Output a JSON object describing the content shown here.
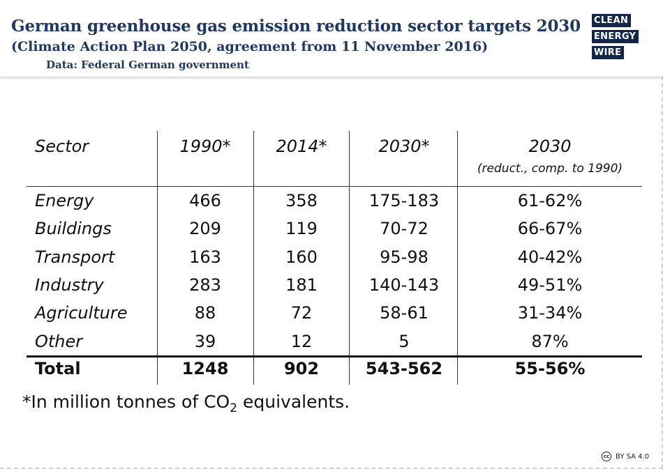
{
  "header": {
    "title": "German greenhouse gas emission reduction sector targets 2030",
    "subtitle": "(Climate Action Plan 2050, agreement from 11 November 2016)",
    "source": "Data: Federal German government"
  },
  "logo": {
    "line1": "CLEAN",
    "line2": "ENERGY",
    "line3": "WIRE",
    "colors": {
      "background": "#12264a",
      "text": "#ffffff",
      "highlight": "#2ab0d4"
    }
  },
  "license": {
    "icon": "cc",
    "text": "BY SA 4.0"
  },
  "chart_data": {
    "type": "table",
    "columns": [
      "Sector",
      "1990*",
      "2014*",
      "2030*",
      "2030"
    ],
    "column_notes": [
      "",
      "",
      "",
      "",
      "(reduct., comp. to 1990)"
    ],
    "rows": [
      [
        "Energy",
        "466",
        "358",
        "175-183",
        "61-62%"
      ],
      [
        "Buildings",
        "209",
        "119",
        "70-72",
        "66-67%"
      ],
      [
        "Transport",
        "163",
        "160",
        "95-98",
        "40-42%"
      ],
      [
        "Industry",
        "283",
        "181",
        "140-143",
        "49-51%"
      ],
      [
        "Agriculture",
        "88",
        "72",
        "58-61",
        "31-34%"
      ],
      [
        "Other",
        "39",
        "12",
        "5",
        "87%"
      ]
    ],
    "total": [
      "Total",
      "1248",
      "902",
      "543-562",
      "55-56%"
    ],
    "footnote_main": "*In million tonnes of CO",
    "footnote_sub": "2",
    "footnote_end": " equivalents."
  }
}
